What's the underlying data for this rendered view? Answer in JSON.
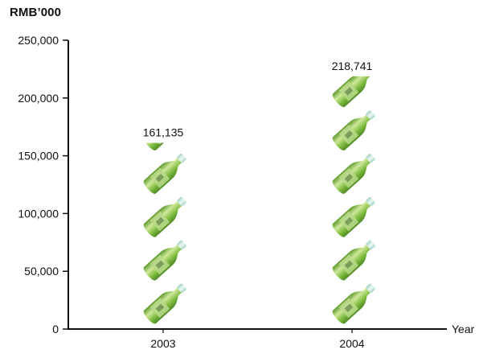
{
  "chart_data": {
    "type": "bar",
    "bar_style": "pictograph",
    "pictograph_icon": "green-tea-bottle-icon",
    "ylabel": "RMB’000",
    "xlabel": "Year",
    "categories": [
      "2003",
      "2004"
    ],
    "values": [
      161135,
      218741
    ],
    "value_labels": [
      "161,135",
      "218,741"
    ],
    "ylim": [
      0,
      250000
    ],
    "yticks": [
      0,
      50000,
      100000,
      150000,
      200000,
      250000
    ],
    "ytick_labels": [
      "0",
      "50,000",
      "100,000",
      "150,000",
      "200,000",
      "250,000"
    ],
    "grid": false,
    "colors": {
      "bottle_green": "#7dbb3e",
      "bottle_light": "#cfe89a",
      "cap": "#cfe8e0",
      "axis": "#111111"
    }
  }
}
